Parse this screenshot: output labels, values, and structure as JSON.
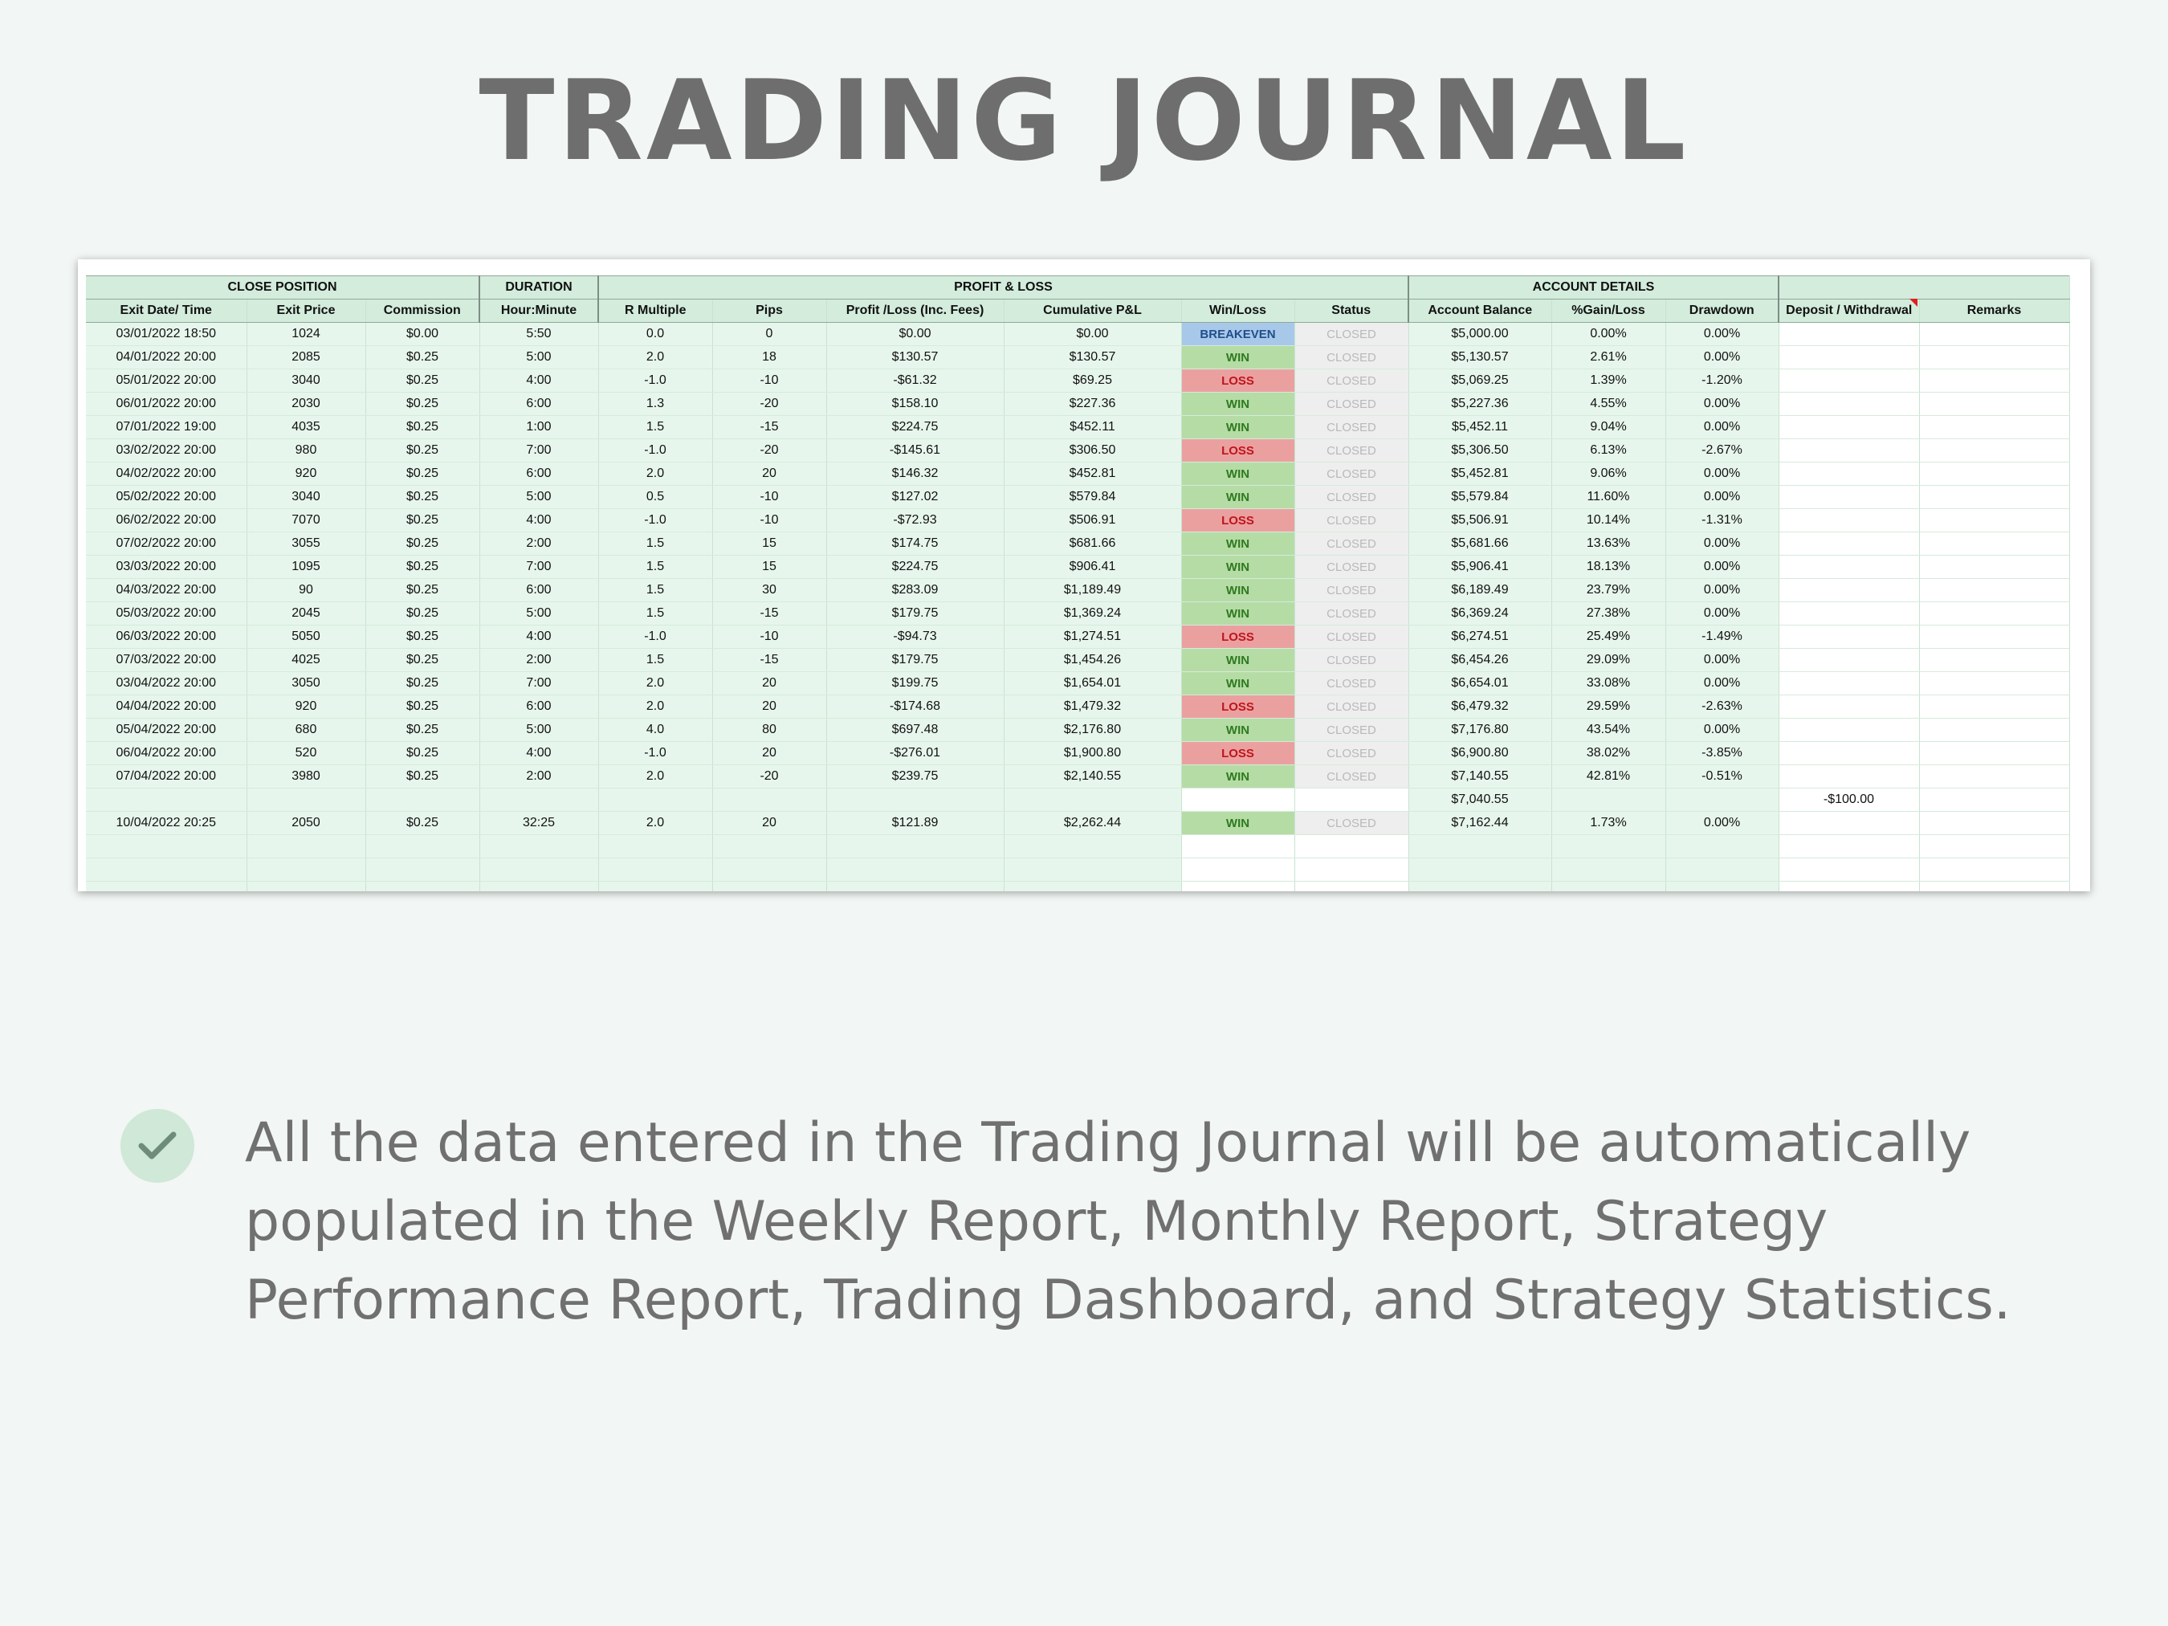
{
  "title": "TRADING JOURNAL",
  "groups": {
    "close_position": "CLOSE POSITION",
    "duration": "DURATION",
    "profit_loss": "PROFIT & LOSS",
    "account_details": "ACCOUNT DETAILS"
  },
  "columns": [
    "Exit Date/ Time",
    "Exit Price",
    "Commission",
    "Hour:Minute",
    "R Multiple",
    "Pips",
    "Profit /Loss (Inc. Fees)",
    "Cumulative P&L",
    "Win/Loss",
    "Status",
    "Account Balance",
    "%Gain/Loss",
    "Drawdown",
    "Deposit / Withdrawal",
    "Remarks"
  ],
  "rows": [
    [
      "03/01/2022 18:50",
      "1024",
      "$0.00",
      "5:50",
      "0.0",
      "0",
      "$0.00",
      "$0.00",
      "BREAKEVEN",
      "CLOSED",
      "$5,000.00",
      "0.00%",
      "0.00%",
      "",
      ""
    ],
    [
      "04/01/2022 20:00",
      "2085",
      "$0.25",
      "5:00",
      "2.0",
      "18",
      "$130.57",
      "$130.57",
      "WIN",
      "CLOSED",
      "$5,130.57",
      "2.61%",
      "0.00%",
      "",
      ""
    ],
    [
      "05/01/2022 20:00",
      "3040",
      "$0.25",
      "4:00",
      "-1.0",
      "-10",
      "-$61.32",
      "$69.25",
      "LOSS",
      "CLOSED",
      "$5,069.25",
      "1.39%",
      "-1.20%",
      "",
      ""
    ],
    [
      "06/01/2022 20:00",
      "2030",
      "$0.25",
      "6:00",
      "1.3",
      "-20",
      "$158.10",
      "$227.36",
      "WIN",
      "CLOSED",
      "$5,227.36",
      "4.55%",
      "0.00%",
      "",
      ""
    ],
    [
      "07/01/2022 19:00",
      "4035",
      "$0.25",
      "1:00",
      "1.5",
      "-15",
      "$224.75",
      "$452.11",
      "WIN",
      "CLOSED",
      "$5,452.11",
      "9.04%",
      "0.00%",
      "",
      ""
    ],
    [
      "03/02/2022 20:00",
      "980",
      "$0.25",
      "7:00",
      "-1.0",
      "-20",
      "-$145.61",
      "$306.50",
      "LOSS",
      "CLOSED",
      "$5,306.50",
      "6.13%",
      "-2.67%",
      "",
      ""
    ],
    [
      "04/02/2022 20:00",
      "920",
      "$0.25",
      "6:00",
      "2.0",
      "20",
      "$146.32",
      "$452.81",
      "WIN",
      "CLOSED",
      "$5,452.81",
      "9.06%",
      "0.00%",
      "",
      ""
    ],
    [
      "05/02/2022 20:00",
      "3040",
      "$0.25",
      "5:00",
      "0.5",
      "-10",
      "$127.02",
      "$579.84",
      "WIN",
      "CLOSED",
      "$5,579.84",
      "11.60%",
      "0.00%",
      "",
      ""
    ],
    [
      "06/02/2022 20:00",
      "7070",
      "$0.25",
      "4:00",
      "-1.0",
      "-10",
      "-$72.93",
      "$506.91",
      "LOSS",
      "CLOSED",
      "$5,506.91",
      "10.14%",
      "-1.31%",
      "",
      ""
    ],
    [
      "07/02/2022 20:00",
      "3055",
      "$0.25",
      "2:00",
      "1.5",
      "15",
      "$174.75",
      "$681.66",
      "WIN",
      "CLOSED",
      "$5,681.66",
      "13.63%",
      "0.00%",
      "",
      ""
    ],
    [
      "03/03/2022 20:00",
      "1095",
      "$0.25",
      "7:00",
      "1.5",
      "15",
      "$224.75",
      "$906.41",
      "WIN",
      "CLOSED",
      "$5,906.41",
      "18.13%",
      "0.00%",
      "",
      ""
    ],
    [
      "04/03/2022 20:00",
      "90",
      "$0.25",
      "6:00",
      "1.5",
      "30",
      "$283.09",
      "$1,189.49",
      "WIN",
      "CLOSED",
      "$6,189.49",
      "23.79%",
      "0.00%",
      "",
      ""
    ],
    [
      "05/03/2022 20:00",
      "2045",
      "$0.25",
      "5:00",
      "1.5",
      "-15",
      "$179.75",
      "$1,369.24",
      "WIN",
      "CLOSED",
      "$6,369.24",
      "27.38%",
      "0.00%",
      "",
      ""
    ],
    [
      "06/03/2022 20:00",
      "5050",
      "$0.25",
      "4:00",
      "-1.0",
      "-10",
      "-$94.73",
      "$1,274.51",
      "LOSS",
      "CLOSED",
      "$6,274.51",
      "25.49%",
      "-1.49%",
      "",
      ""
    ],
    [
      "07/03/2022 20:00",
      "4025",
      "$0.25",
      "2:00",
      "1.5",
      "-15",
      "$179.75",
      "$1,454.26",
      "WIN",
      "CLOSED",
      "$6,454.26",
      "29.09%",
      "0.00%",
      "",
      ""
    ],
    [
      "03/04/2022 20:00",
      "3050",
      "$0.25",
      "7:00",
      "2.0",
      "20",
      "$199.75",
      "$1,654.01",
      "WIN",
      "CLOSED",
      "$6,654.01",
      "33.08%",
      "0.00%",
      "",
      ""
    ],
    [
      "04/04/2022 20:00",
      "920",
      "$0.25",
      "6:00",
      "2.0",
      "20",
      "-$174.68",
      "$1,479.32",
      "LOSS",
      "CLOSED",
      "$6,479.32",
      "29.59%",
      "-2.63%",
      "",
      ""
    ],
    [
      "05/04/2022 20:00",
      "680",
      "$0.25",
      "5:00",
      "4.0",
      "80",
      "$697.48",
      "$2,176.80",
      "WIN",
      "CLOSED",
      "$7,176.80",
      "43.54%",
      "0.00%",
      "",
      ""
    ],
    [
      "06/04/2022 20:00",
      "520",
      "$0.25",
      "4:00",
      "-1.0",
      "20",
      "-$276.01",
      "$1,900.80",
      "LOSS",
      "CLOSED",
      "$6,900.80",
      "38.02%",
      "-3.85%",
      "",
      ""
    ],
    [
      "07/04/2022 20:00",
      "3980",
      "$0.25",
      "2:00",
      "2.0",
      "-20",
      "$239.75",
      "$2,140.55",
      "WIN",
      "CLOSED",
      "$7,140.55",
      "42.81%",
      "-0.51%",
      "",
      ""
    ],
    [
      "",
      "",
      "",
      "",
      "",
      "",
      "",
      "",
      "",
      "",
      "$7,040.55",
      "",
      "",
      "-$100.00",
      ""
    ],
    [
      "10/04/2022 20:25",
      "2050",
      "$0.25",
      "32:25",
      "2.0",
      "20",
      "$121.89",
      "$2,262.44",
      "WIN",
      "CLOSED",
      "$7,162.44",
      "1.73%",
      "0.00%",
      "",
      ""
    ],
    [
      "",
      "",
      "",
      "",
      "",
      "",
      "",
      "",
      "",
      "",
      "",
      "",
      "",
      "",
      ""
    ],
    [
      "",
      "",
      "",
      "",
      "",
      "",
      "",
      "",
      "",
      "",
      "",
      "",
      "",
      "",
      ""
    ],
    [
      "",
      "",
      "",
      "",
      "",
      "",
      "",
      "",
      "",
      "",
      "",
      "",
      "",
      "",
      ""
    ]
  ],
  "note": {
    "icon": "check-icon",
    "text": "All the data entered in the Trading Journal will be automatically populated in the Weekly Report, Monthly Report, Strategy Performance Report, Trading Dashboard, and Strategy Statistics."
  },
  "colors": {
    "win_bg": "#b6dca6",
    "win_text": "#2d7a1f",
    "loss_bg": "#eba0a0",
    "loss_text": "#c0141c",
    "breakeven_bg": "#a8c8ea",
    "breakeven_text": "#1f4f8a",
    "header_bg": "#d3ecdc",
    "cell_bg": "#e7f6ec"
  }
}
